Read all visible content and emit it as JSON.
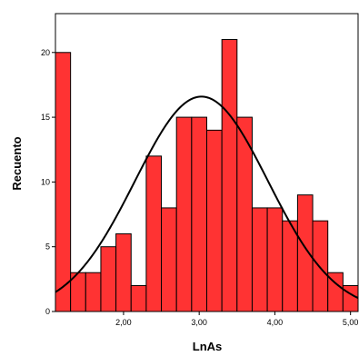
{
  "chart_data": {
    "type": "bar",
    "xlabel": "LnAs",
    "ylabel": "Recuento",
    "xlim": [
      1.1,
      5.1
    ],
    "ylim": [
      0,
      23
    ],
    "bin_width": 0.2,
    "bins_start": 1.1,
    "values": [
      20,
      3,
      3,
      5,
      6,
      2,
      12,
      8,
      15,
      15,
      14,
      21,
      15,
      8,
      8,
      7,
      9,
      7,
      3,
      2
    ],
    "x_ticks": [
      2.0,
      3.0,
      4.0,
      5.0
    ],
    "x_tick_labels": [
      "2,00",
      "3,00",
      "4,00",
      "5,00"
    ],
    "y_ticks": [
      0,
      5,
      10,
      15,
      20
    ],
    "y_tick_labels": [
      "0",
      "5",
      "10",
      "15",
      "20"
    ],
    "normal_curve": {
      "mean": 3.03,
      "std": 0.88,
      "n": 183
    },
    "bar_color": "#ff3333",
    "bar_edge_color": "#000000",
    "curve_color": "#000000"
  }
}
